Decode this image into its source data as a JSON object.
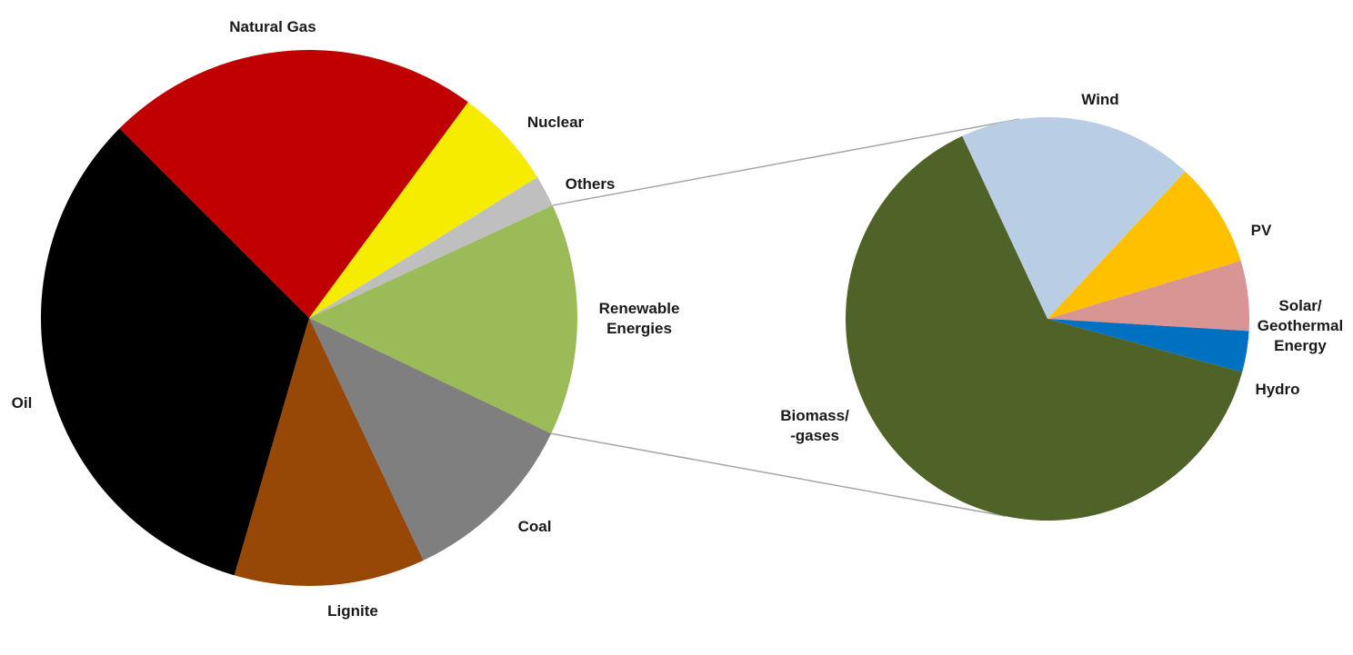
{
  "chart_data": [
    {
      "type": "pie",
      "title": "",
      "categories": [
        "Natural Gas",
        "Nuclear",
        "Others",
        "Renewable Energies",
        "Coal",
        "Lignite",
        "Oil"
      ],
      "values": [
        22.6,
        6.1,
        1.9,
        14.0,
        10.9,
        11.5,
        33.0
      ],
      "colors": [
        "#c00000",
        "#f5ec00",
        "#bfbfbf",
        "#9bbb59",
        "#7f7f7f",
        "#974806",
        "#000000"
      ],
      "label_lines": [
        [
          "Natural Gas"
        ],
        [
          "Nuclear"
        ],
        [
          "Others"
        ],
        [
          "Renewable",
          "Energies"
        ],
        [
          "Coal"
        ],
        [
          "Lignite"
        ],
        [
          "Oil"
        ]
      ],
      "start_angle_deg": 315,
      "direction": "clockwise"
    },
    {
      "type": "pie",
      "title": "",
      "categories": [
        "Wind",
        "PV",
        "Solar/ Geothermal Energy",
        "Hydro",
        "Biomass/ -gases"
      ],
      "values": [
        18.9,
        8.4,
        5.6,
        3.3,
        63.8
      ],
      "colors": [
        "#b9cde5",
        "#ffc000",
        "#d99594",
        "#0070c0",
        "#4f6228"
      ],
      "label_lines": [
        [
          "Wind"
        ],
        [
          "PV"
        ],
        [
          "Solar/",
          "Geothermal",
          "Energy"
        ],
        [
          "Hydro"
        ],
        [
          "Biomass/",
          "-gases"
        ]
      ],
      "start_angle_deg": 335,
      "direction": "clockwise",
      "detail_of": "Renewable Energies"
    }
  ]
}
